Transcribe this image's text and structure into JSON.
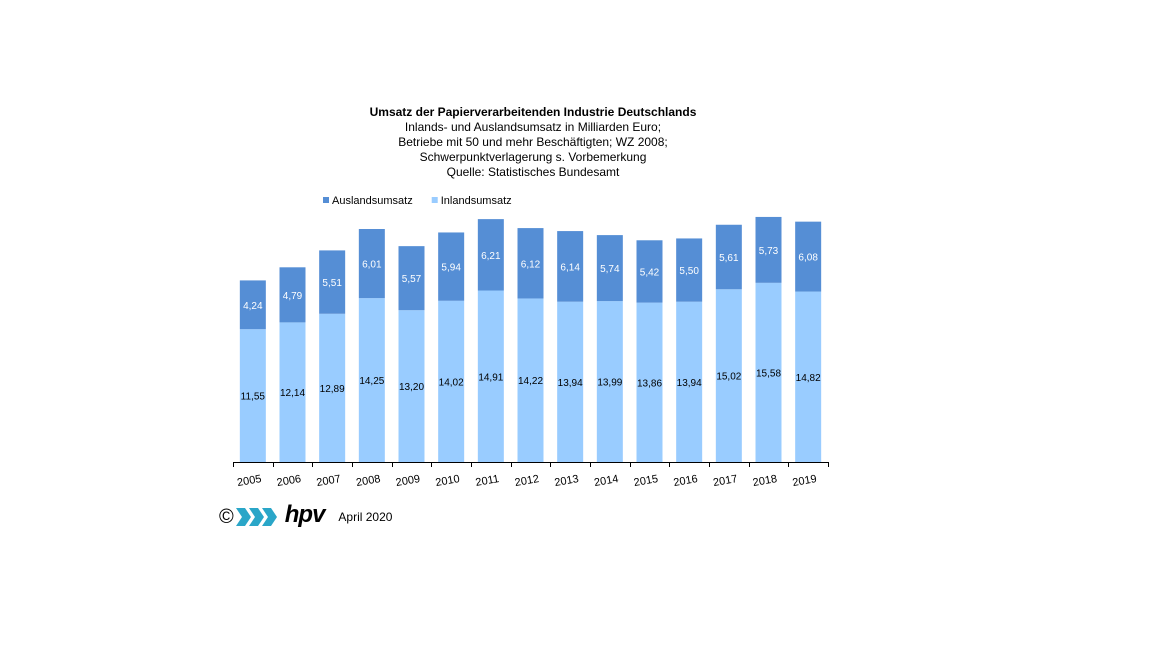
{
  "chart_data": {
    "type": "bar",
    "stacked": true,
    "title": "Umsatz der Papierverarbeitenden Industrie Deutschlands",
    "subtitles": [
      "Inlands- und Auslandsumsatz in Milliarden Euro;",
      "Betriebe mit 50 und mehr Beschäftigten; WZ 2008;",
      "Schwerpunktverlagerung  s. Vorbemerkung",
      "Quelle: Statistisches Bundesamt"
    ],
    "categories": [
      "2005",
      "2006",
      "2007",
      "2008",
      "2009",
      "2010",
      "2011",
      "2012",
      "2013",
      "2014",
      "2015",
      "2016",
      "2017",
      "2018",
      "2019"
    ],
    "series": [
      {
        "name": "Inlandsumsatz",
        "color": "#99ccff",
        "values": [
          11.55,
          12.14,
          12.89,
          14.25,
          13.2,
          14.02,
          14.91,
          14.22,
          13.94,
          13.99,
          13.86,
          13.94,
          15.02,
          15.58,
          14.82
        ],
        "labels": [
          "11,55",
          "12,14",
          "12,89",
          "14,25",
          "13,20",
          "14,02",
          "14,91",
          "14,22",
          "13,94",
          "13,99",
          "13,86",
          "13,94",
          "15,02",
          "15,58",
          "14,82"
        ]
      },
      {
        "name": "Auslandsumsatz",
        "color": "#558ed5",
        "values": [
          4.24,
          4.79,
          5.51,
          6.01,
          5.57,
          5.94,
          6.21,
          6.12,
          6.14,
          5.74,
          5.42,
          5.5,
          5.61,
          5.73,
          6.08
        ],
        "labels": [
          "4,24",
          "4,79",
          "5,51",
          "6,01",
          "5,57",
          "5,94",
          "6,21",
          "6,12",
          "6,14",
          "5,74",
          "5,42",
          "5,50",
          "5,61",
          "5,73",
          "6,08"
        ]
      }
    ],
    "legend_order": [
      "Auslandsumsatz",
      "Inlandsumsatz"
    ],
    "legend_position": "top-left",
    "ylim": [
      0,
      21.5
    ],
    "grid": false
  },
  "footer": {
    "copyright": "©",
    "logo_text": "hpv",
    "logo_color": "#2aa6c8",
    "date": "April 2020"
  }
}
